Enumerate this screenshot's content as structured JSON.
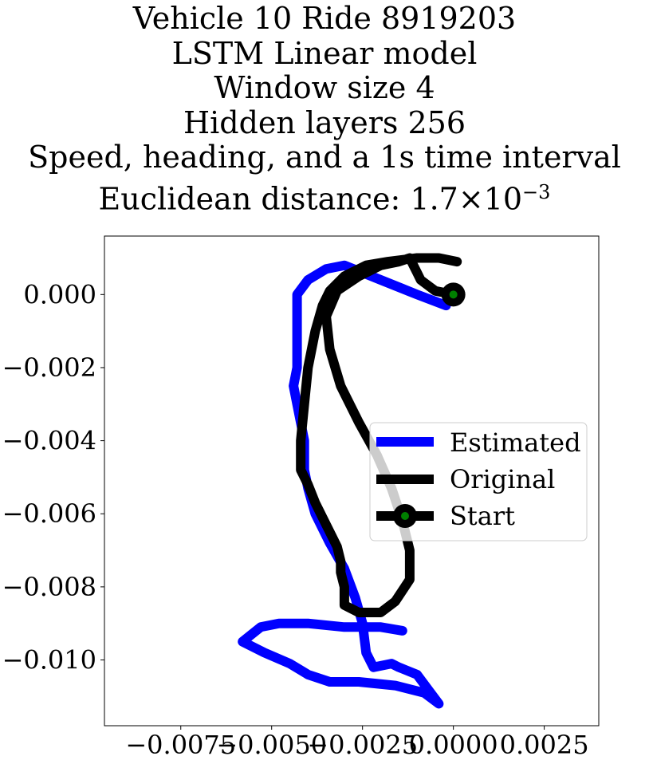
{
  "chart_data": {
    "type": "line",
    "title_lines": [
      "Vehicle 10 Ride 8919203",
      "LSTM Linear model",
      "Window size 4",
      "Hidden layers 256",
      "Speed, heading, and a 1s time interval"
    ],
    "metric": {
      "label": "Euclidean distance: ",
      "mantissa": "1.7",
      "times": "×",
      "base": "10",
      "exponent": "−3"
    },
    "xlim": [
      -0.0096,
      0.004
    ],
    "ylim": [
      -0.0118,
      0.0016
    ],
    "xticks": [
      -0.0075,
      -0.005,
      -0.0025,
      0.0,
      0.0025
    ],
    "xtick_labels": [
      "−0.0075",
      "−0.0050",
      "−0.0025",
      "0.0000",
      "0.0025"
    ],
    "yticks": [
      0.0,
      -0.002,
      -0.004,
      -0.006,
      -0.008,
      -0.01
    ],
    "ytick_labels": [
      "0.000",
      "−0.002",
      "−0.004",
      "−0.006",
      "−0.008",
      "−0.010"
    ],
    "grid": false,
    "legend_position": "center-right",
    "series": [
      {
        "name": "Estimated",
        "color": "#0000ff",
        "points": [
          [
            -0.0002,
            -0.0003
          ],
          [
            -0.001,
            0.0
          ],
          [
            -0.002,
            0.0004
          ],
          [
            -0.003,
            0.0008
          ],
          [
            -0.0035,
            0.0007
          ],
          [
            -0.004,
            0.0004
          ],
          [
            -0.0043,
            0.0
          ],
          [
            -0.0043,
            -0.001
          ],
          [
            -0.0043,
            -0.002
          ],
          [
            -0.0044,
            -0.0025
          ],
          [
            -0.0043,
            -0.003
          ],
          [
            -0.0041,
            -0.004
          ],
          [
            -0.0041,
            -0.0048
          ],
          [
            -0.004,
            -0.0053
          ],
          [
            -0.0038,
            -0.006
          ],
          [
            -0.0034,
            -0.0068
          ],
          [
            -0.003,
            -0.0075
          ],
          [
            -0.0027,
            -0.0083
          ],
          [
            -0.0025,
            -0.009
          ],
          [
            -0.0024,
            -0.0098
          ],
          [
            -0.0022,
            -0.0102
          ],
          [
            -0.0017,
            -0.0101
          ],
          [
            -0.0015,
            -0.0102
          ],
          [
            -0.001,
            -0.0104
          ],
          [
            -0.0007,
            -0.0108
          ],
          [
            -0.0004,
            -0.0112
          ],
          [
            -0.0008,
            -0.0109
          ],
          [
            -0.0016,
            -0.0107
          ],
          [
            -0.0026,
            -0.0106
          ],
          [
            -0.0034,
            -0.0106
          ],
          [
            -0.004,
            -0.0104
          ],
          [
            -0.0045,
            -0.0101
          ],
          [
            -0.0052,
            -0.0098
          ],
          [
            -0.0058,
            -0.0095
          ],
          [
            -0.0053,
            -0.0091
          ],
          [
            -0.0048,
            -0.009
          ],
          [
            -0.004,
            -0.009
          ],
          [
            -0.003,
            -0.0091
          ],
          [
            -0.002,
            -0.0091
          ],
          [
            -0.0014,
            -0.0092
          ]
        ]
      },
      {
        "name": "Original",
        "color": "#000000",
        "points": [
          [
            0.0001,
            0.0009
          ],
          [
            -0.0004,
            0.001
          ],
          [
            -0.001,
            0.001
          ],
          [
            -0.0018,
            0.0009
          ],
          [
            -0.0024,
            0.0008
          ],
          [
            -0.003,
            0.0005
          ],
          [
            -0.0034,
            0.0001
          ],
          [
            -0.0036,
            -0.0003
          ],
          [
            -0.0038,
            -0.001
          ],
          [
            -0.004,
            -0.002
          ],
          [
            -0.0041,
            -0.003
          ],
          [
            -0.0042,
            -0.004
          ],
          [
            -0.0042,
            -0.0048
          ],
          [
            -0.004,
            -0.0052
          ],
          [
            -0.0038,
            -0.0057
          ],
          [
            -0.0036,
            -0.0061
          ],
          [
            -0.0034,
            -0.0065
          ],
          [
            -0.0032,
            -0.0069
          ],
          [
            -0.0031,
            -0.0073
          ],
          [
            -0.0031,
            -0.0076
          ],
          [
            -0.003,
            -0.008
          ],
          [
            -0.003,
            -0.0085
          ],
          [
            -0.0026,
            -0.0087
          ],
          [
            -0.002,
            -0.0087
          ],
          [
            -0.0016,
            -0.0084
          ],
          [
            -0.0012,
            -0.0078
          ],
          [
            -0.0012,
            -0.007
          ],
          [
            -0.0014,
            -0.0062
          ],
          [
            -0.0017,
            -0.0053
          ],
          [
            -0.0021,
            -0.0044
          ],
          [
            -0.0026,
            -0.0035
          ],
          [
            -0.0031,
            -0.0025
          ],
          [
            -0.0034,
            -0.0015
          ],
          [
            -0.0035,
            -0.0006
          ],
          [
            -0.0032,
            0.0001
          ],
          [
            -0.0026,
            0.0005
          ],
          [
            -0.002,
            0.0008
          ],
          [
            -0.0015,
            0.0009
          ],
          [
            -0.0012,
            0.001
          ],
          [
            -0.0011,
            0.0008
          ],
          [
            -0.001,
            0.0006
          ],
          [
            -0.0009,
            0.0004
          ],
          [
            -0.0005,
            0.0001
          ],
          [
            0.0,
            0.0
          ]
        ]
      }
    ],
    "start": {
      "name": "Start",
      "x": 0.0,
      "y": 0.0,
      "outer_color": "#000000",
      "inner_color": "#008000"
    }
  }
}
